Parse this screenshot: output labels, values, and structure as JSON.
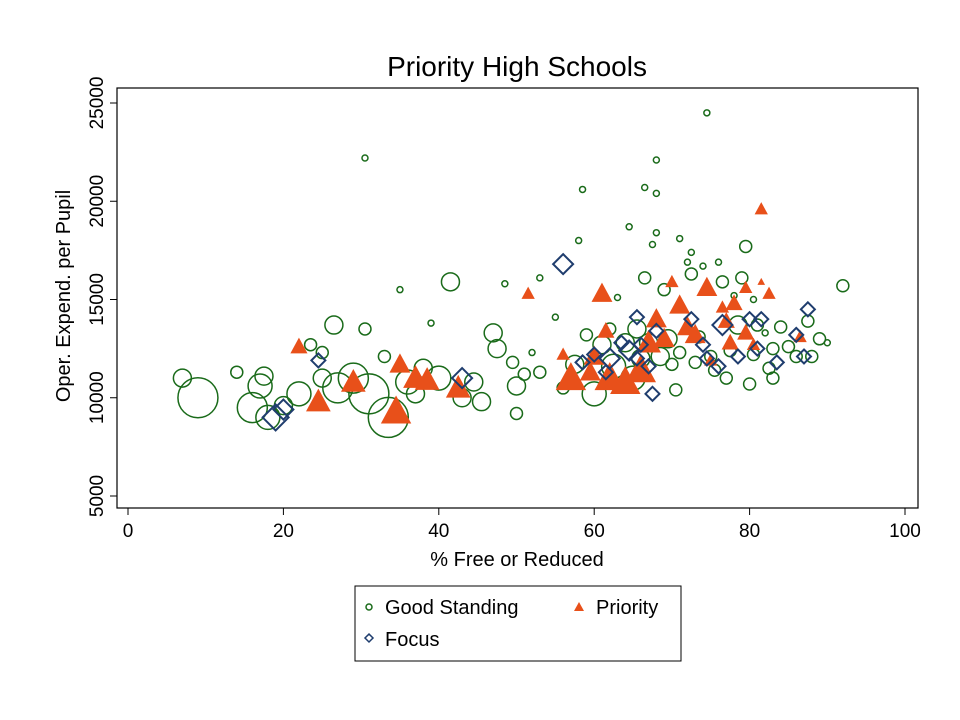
{
  "chart_data": {
    "type": "scatter",
    "title": "Priority High Schools",
    "xlabel": "% Free or Reduced",
    "ylabel": "Oper. Expend. per Pupil",
    "xlim": [
      0,
      100
    ],
    "ylim": [
      5000,
      25000
    ],
    "xticks": [
      "0",
      "20",
      "40",
      "60",
      "80",
      "100"
    ],
    "yticks": [
      "5000",
      "10000",
      "15000",
      "20000",
      "25000"
    ],
    "grid": false,
    "legend_position": "bottom",
    "series": [
      {
        "name": "Good Standing",
        "marker": "hollow-circle",
        "color": "#1a6b1a",
        "points": [
          {
            "x": 7,
            "y": 11000,
            "s": 2
          },
          {
            "x": 9,
            "y": 10000,
            "s": 5
          },
          {
            "x": 14,
            "y": 11300,
            "s": 1
          },
          {
            "x": 16,
            "y": 9500,
            "s": 4
          },
          {
            "x": 17,
            "y": 10600,
            "s": 3
          },
          {
            "x": 17.5,
            "y": 11100,
            "s": 2
          },
          {
            "x": 18,
            "y": 9000,
            "s": 3
          },
          {
            "x": 20,
            "y": 9600,
            "s": 2
          },
          {
            "x": 22,
            "y": 10200,
            "s": 3
          },
          {
            "x": 23.5,
            "y": 12700,
            "s": 1
          },
          {
            "x": 25,
            "y": 11000,
            "s": 2
          },
          {
            "x": 25,
            "y": 12300,
            "s": 1
          },
          {
            "x": 26.5,
            "y": 13700,
            "s": 2
          },
          {
            "x": 27,
            "y": 10500,
            "s": 4
          },
          {
            "x": 29,
            "y": 11000,
            "s": 4
          },
          {
            "x": 30.5,
            "y": 13500,
            "s": 1
          },
          {
            "x": 31,
            "y": 10200,
            "s": 5
          },
          {
            "x": 30.5,
            "y": 22200,
            "s": 0
          },
          {
            "x": 33,
            "y": 12100,
            "s": 1
          },
          {
            "x": 33.5,
            "y": 9000,
            "s": 5
          },
          {
            "x": 35,
            "y": 15500,
            "s": 0
          },
          {
            "x": 36,
            "y": 10800,
            "s": 3
          },
          {
            "x": 37,
            "y": 10200,
            "s": 2
          },
          {
            "x": 38,
            "y": 11500,
            "s": 2
          },
          {
            "x": 40,
            "y": 11000,
            "s": 3
          },
          {
            "x": 39,
            "y": 13800,
            "s": 0
          },
          {
            "x": 41.5,
            "y": 15900,
            "s": 2
          },
          {
            "x": 43,
            "y": 10000,
            "s": 2
          },
          {
            "x": 44.5,
            "y": 10800,
            "s": 2
          },
          {
            "x": 45.5,
            "y": 9800,
            "s": 2
          },
          {
            "x": 47,
            "y": 13300,
            "s": 2
          },
          {
            "x": 47.5,
            "y": 12500,
            "s": 2
          },
          {
            "x": 48.5,
            "y": 15800,
            "s": 0
          },
          {
            "x": 49.5,
            "y": 11800,
            "s": 1
          },
          {
            "x": 50,
            "y": 10600,
            "s": 2
          },
          {
            "x": 50,
            "y": 9200,
            "s": 1
          },
          {
            "x": 51,
            "y": 11200,
            "s": 1
          },
          {
            "x": 52,
            "y": 12300,
            "s": 0
          },
          {
            "x": 53,
            "y": 16100,
            "s": 0
          },
          {
            "x": 53,
            "y": 11300,
            "s": 1
          },
          {
            "x": 55,
            "y": 14100,
            "s": 0
          },
          {
            "x": 56,
            "y": 10500,
            "s": 1
          },
          {
            "x": 57.5,
            "y": 11700,
            "s": 2
          },
          {
            "x": 58,
            "y": 18000,
            "s": 0
          },
          {
            "x": 58.5,
            "y": 20600,
            "s": 0
          },
          {
            "x": 59,
            "y": 13200,
            "s": 1
          },
          {
            "x": 60,
            "y": 10200,
            "s": 3
          },
          {
            "x": 61,
            "y": 12700,
            "s": 2
          },
          {
            "x": 62,
            "y": 13500,
            "s": 1
          },
          {
            "x": 62.5,
            "y": 11600,
            "s": 3
          },
          {
            "x": 63,
            "y": 15100,
            "s": 0
          },
          {
            "x": 64,
            "y": 12800,
            "s": 2
          },
          {
            "x": 64.5,
            "y": 18700,
            "s": 0
          },
          {
            "x": 65,
            "y": 11000,
            "s": 3
          },
          {
            "x": 65.5,
            "y": 13500,
            "s": 2
          },
          {
            "x": 66,
            "y": 12000,
            "s": 2
          },
          {
            "x": 66.5,
            "y": 16100,
            "s": 1
          },
          {
            "x": 66.5,
            "y": 20700,
            "s": 0
          },
          {
            "x": 67,
            "y": 12800,
            "s": 2
          },
          {
            "x": 67.5,
            "y": 17800,
            "s": 0
          },
          {
            "x": 68,
            "y": 22100,
            "s": 0
          },
          {
            "x": 68,
            "y": 20400,
            "s": 0
          },
          {
            "x": 68,
            "y": 18400,
            "s": 0
          },
          {
            "x": 68.5,
            "y": 12100,
            "s": 2
          },
          {
            "x": 69,
            "y": 15500,
            "s": 1
          },
          {
            "x": 69.5,
            "y": 13000,
            "s": 2
          },
          {
            "x": 70,
            "y": 11700,
            "s": 1
          },
          {
            "x": 70.5,
            "y": 10400,
            "s": 1
          },
          {
            "x": 71,
            "y": 18100,
            "s": 0
          },
          {
            "x": 71,
            "y": 12300,
            "s": 1
          },
          {
            "x": 72,
            "y": 16900,
            "s": 0
          },
          {
            "x": 72.5,
            "y": 17400,
            "s": 0
          },
          {
            "x": 72.5,
            "y": 16300,
            "s": 1
          },
          {
            "x": 73,
            "y": 11800,
            "s": 1
          },
          {
            "x": 73.5,
            "y": 13100,
            "s": 1
          },
          {
            "x": 74,
            "y": 16700,
            "s": 0
          },
          {
            "x": 74.5,
            "y": 24500,
            "s": 0
          },
          {
            "x": 75,
            "y": 12100,
            "s": 1
          },
          {
            "x": 75.5,
            "y": 11400,
            "s": 1
          },
          {
            "x": 76,
            "y": 16900,
            "s": 0
          },
          {
            "x": 76.5,
            "y": 15900,
            "s": 1
          },
          {
            "x": 77,
            "y": 11000,
            "s": 1
          },
          {
            "x": 77.5,
            "y": 12400,
            "s": 1
          },
          {
            "x": 78,
            "y": 15200,
            "s": 0
          },
          {
            "x": 78.5,
            "y": 13700,
            "s": 2
          },
          {
            "x": 79,
            "y": 16100,
            "s": 1
          },
          {
            "x": 79.5,
            "y": 17700,
            "s": 1
          },
          {
            "x": 80,
            "y": 10700,
            "s": 1
          },
          {
            "x": 80.5,
            "y": 15000,
            "s": 0
          },
          {
            "x": 80.5,
            "y": 12200,
            "s": 1
          },
          {
            "x": 81,
            "y": 13700,
            "s": 1
          },
          {
            "x": 82,
            "y": 13300,
            "s": 0
          },
          {
            "x": 82.5,
            "y": 11500,
            "s": 1
          },
          {
            "x": 83,
            "y": 12500,
            "s": 1
          },
          {
            "x": 83,
            "y": 11000,
            "s": 1
          },
          {
            "x": 84,
            "y": 13600,
            "s": 1
          },
          {
            "x": 85,
            "y": 12600,
            "s": 1
          },
          {
            "x": 86,
            "y": 12100,
            "s": 1
          },
          {
            "x": 87.5,
            "y": 13900,
            "s": 1
          },
          {
            "x": 88,
            "y": 12100,
            "s": 1
          },
          {
            "x": 89,
            "y": 13000,
            "s": 1
          },
          {
            "x": 90,
            "y": 12800,
            "s": 0
          },
          {
            "x": 92,
            "y": 15700,
            "s": 1
          }
        ]
      },
      {
        "name": "Priority",
        "marker": "filled-triangle",
        "color": "#e8501a",
        "points": [
          {
            "x": 22,
            "y": 12600,
            "s": 2
          },
          {
            "x": 24.5,
            "y": 9800,
            "s": 4
          },
          {
            "x": 29,
            "y": 10800,
            "s": 4
          },
          {
            "x": 34.5,
            "y": 9300,
            "s": 5
          },
          {
            "x": 35,
            "y": 11700,
            "s": 3
          },
          {
            "x": 37,
            "y": 11000,
            "s": 4
          },
          {
            "x": 38.5,
            "y": 10900,
            "s": 4
          },
          {
            "x": 42.5,
            "y": 10500,
            "s": 4
          },
          {
            "x": 51.5,
            "y": 15300,
            "s": 1
          },
          {
            "x": 56,
            "y": 12200,
            "s": 1
          },
          {
            "x": 57,
            "y": 11000,
            "s": 5
          },
          {
            "x": 59.5,
            "y": 11300,
            "s": 3
          },
          {
            "x": 60,
            "y": 12100,
            "s": 3
          },
          {
            "x": 61,
            "y": 15300,
            "s": 3
          },
          {
            "x": 61.5,
            "y": 13400,
            "s": 2
          },
          {
            "x": 62,
            "y": 11000,
            "s": 5
          },
          {
            "x": 64,
            "y": 10800,
            "s": 5
          },
          {
            "x": 66,
            "y": 11400,
            "s": 5
          },
          {
            "x": 67,
            "y": 12800,
            "s": 4
          },
          {
            "x": 68,
            "y": 14000,
            "s": 3
          },
          {
            "x": 69,
            "y": 13000,
            "s": 3
          },
          {
            "x": 70,
            "y": 15900,
            "s": 1
          },
          {
            "x": 71,
            "y": 14700,
            "s": 3
          },
          {
            "x": 72,
            "y": 13600,
            "s": 3
          },
          {
            "x": 73,
            "y": 13200,
            "s": 3
          },
          {
            "x": 74.5,
            "y": 15600,
            "s": 3
          },
          {
            "x": 75,
            "y": 11900,
            "s": 1
          },
          {
            "x": 76.5,
            "y": 14600,
            "s": 1
          },
          {
            "x": 77,
            "y": 13900,
            "s": 2
          },
          {
            "x": 77.5,
            "y": 12800,
            "s": 2
          },
          {
            "x": 78,
            "y": 14800,
            "s": 2
          },
          {
            "x": 79.5,
            "y": 13300,
            "s": 2
          },
          {
            "x": 79.5,
            "y": 15600,
            "s": 1
          },
          {
            "x": 80.5,
            "y": 12700,
            "s": 1
          },
          {
            "x": 81.5,
            "y": 19600,
            "s": 1
          },
          {
            "x": 81.5,
            "y": 15900,
            "s": 0
          },
          {
            "x": 82.5,
            "y": 15300,
            "s": 1
          },
          {
            "x": 86.5,
            "y": 13100,
            "s": 1
          }
        ]
      },
      {
        "name": "Focus",
        "marker": "hollow-diamond",
        "color": "#1f3d6e",
        "points": [
          {
            "x": 19,
            "y": 9000,
            "s": 3
          },
          {
            "x": 20,
            "y": 9400,
            "s": 2
          },
          {
            "x": 24.5,
            "y": 11900,
            "s": 1
          },
          {
            "x": 43,
            "y": 11000,
            "s": 2
          },
          {
            "x": 56,
            "y": 16800,
            "s": 2
          },
          {
            "x": 58.5,
            "y": 11800,
            "s": 1
          },
          {
            "x": 60,
            "y": 12200,
            "s": 1
          },
          {
            "x": 61.5,
            "y": 11300,
            "s": 1
          },
          {
            "x": 62,
            "y": 12000,
            "s": 2
          },
          {
            "x": 63.5,
            "y": 12800,
            "s": 1
          },
          {
            "x": 64.5,
            "y": 12400,
            "s": 2
          },
          {
            "x": 65.5,
            "y": 12000,
            "s": 1
          },
          {
            "x": 65.5,
            "y": 14100,
            "s": 1
          },
          {
            "x": 66,
            "y": 12700,
            "s": 1
          },
          {
            "x": 67,
            "y": 11600,
            "s": 1
          },
          {
            "x": 67.5,
            "y": 10200,
            "s": 1
          },
          {
            "x": 68,
            "y": 13400,
            "s": 1
          },
          {
            "x": 72.5,
            "y": 14000,
            "s": 1
          },
          {
            "x": 74,
            "y": 12700,
            "s": 1
          },
          {
            "x": 74.5,
            "y": 12000,
            "s": 1
          },
          {
            "x": 76,
            "y": 11600,
            "s": 1
          },
          {
            "x": 76.5,
            "y": 13700,
            "s": 2
          },
          {
            "x": 78.5,
            "y": 12100,
            "s": 1
          },
          {
            "x": 80,
            "y": 14000,
            "s": 1
          },
          {
            "x": 81,
            "y": 12500,
            "s": 1
          },
          {
            "x": 81.5,
            "y": 14000,
            "s": 1
          },
          {
            "x": 83.5,
            "y": 11800,
            "s": 1
          },
          {
            "x": 86,
            "y": 13200,
            "s": 1
          },
          {
            "x": 87,
            "y": 12100,
            "s": 1
          },
          {
            "x": 87.5,
            "y": 14500,
            "s": 1
          }
        ]
      }
    ]
  }
}
